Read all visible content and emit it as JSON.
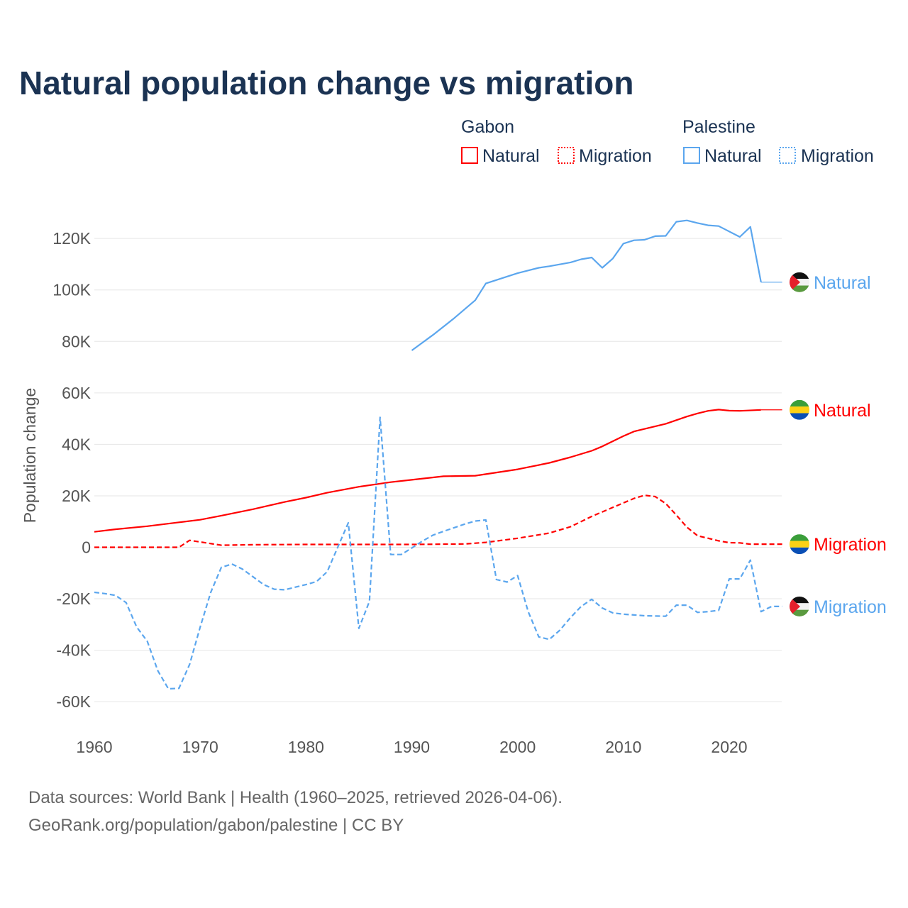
{
  "title": "Natural population change vs migration",
  "footer": {
    "line1": "Data sources: World Bank | Health (1960–2025, retrieved 2026-04-06).",
    "line2": "GeoRank.org/population/gabon/palestine | CC BY"
  },
  "legend": {
    "groups": [
      {
        "name": "Gabon",
        "items": [
          "Natural",
          "Migration"
        ]
      },
      {
        "name": "Palestine",
        "items": [
          "Natural",
          "Migration"
        ]
      }
    ]
  },
  "colors": {
    "gabon": "#ff0000",
    "palestine": "#5ba6ee"
  },
  "chart_data": {
    "type": "line",
    "title": "Natural population change vs migration",
    "xlabel": "",
    "ylabel": "Population change",
    "xlim": [
      1960,
      2025
    ],
    "ylim": [
      -70000,
      130000
    ],
    "xticks": [
      1960,
      1970,
      1980,
      1990,
      2000,
      2010,
      2020
    ],
    "xtick_labels": [
      "1960",
      "1970",
      "1980",
      "1990",
      "2000",
      "2010",
      "2020"
    ],
    "yticks": [
      120000,
      100000,
      80000,
      60000,
      40000,
      20000,
      0,
      -20000,
      -40000,
      -60000
    ],
    "ytick_labels": [
      "120K",
      "100K",
      "80K",
      "60K",
      "40K",
      "20K",
      "0",
      "-20K",
      "-40K",
      "-60K"
    ],
    "grid": true,
    "legend_position": "top-right",
    "series": [
      {
        "name": "Gabon Natural",
        "label": "Natural",
        "country": "gabon",
        "dashed": false,
        "x": [
          1960,
          1962,
          1965,
          1968,
          1970,
          1972,
          1975,
          1978,
          1980,
          1982,
          1985,
          1988,
          1990,
          1993,
          1996,
          2000,
          2003,
          2005,
          2007,
          2008,
          2010,
          2011,
          2014,
          2016,
          2017,
          2018,
          2019,
          2020,
          2021,
          2023
        ],
        "y": [
          6000,
          7000,
          8200,
          9700,
          10700,
          12300,
          14800,
          17600,
          19300,
          21200,
          23500,
          25300,
          26200,
          27600,
          27800,
          30300,
          32800,
          35000,
          37500,
          39200,
          43200,
          45000,
          48000,
          50800,
          52000,
          53000,
          53500,
          53100,
          53000,
          53400
        ],
        "extend_to": 2025
      },
      {
        "name": "Gabon Migration",
        "label": "Migration",
        "country": "gabon",
        "dashed": true,
        "x": [
          1960,
          1968,
          1969,
          1972,
          1975,
          1980,
          1985,
          1990,
          1995,
          1997,
          2000,
          2003,
          2005,
          2007,
          2009,
          2011,
          2012,
          2013,
          2014,
          2015,
          2016,
          2017,
          2019,
          2020,
          2021,
          2022,
          2025
        ],
        "y": [
          0,
          0,
          2700,
          800,
          1000,
          1100,
          1100,
          1100,
          1300,
          1900,
          3500,
          5500,
          8000,
          12000,
          15500,
          19000,
          20200,
          19700,
          17000,
          12500,
          7800,
          4500,
          2500,
          1800,
          1700,
          1200,
          1200
        ]
      },
      {
        "name": "Palestine Natural",
        "label": "Natural",
        "country": "palestine",
        "dashed": false,
        "x": [
          1990,
          1992,
          1994,
          1996,
          1997,
          2000,
          2002,
          2003,
          2005,
          2006,
          2007,
          2008,
          2009,
          2010,
          2011,
          2012,
          2013,
          2014,
          2015,
          2016,
          2017,
          2018,
          2019,
          2021,
          2022,
          2023
        ],
        "y": [
          76500,
          82500,
          89000,
          96000,
          102500,
          106500,
          108600,
          109200,
          110700,
          111900,
          112600,
          108600,
          112200,
          118000,
          119300,
          119500,
          120900,
          121000,
          126500,
          127000,
          126000,
          125100,
          124800,
          120600,
          124500,
          103000
        ],
        "extend_to": 2025
      },
      {
        "name": "Palestine Migration",
        "label": "Migration",
        "country": "palestine",
        "dashed": true,
        "x": [
          1960,
          1961,
          1962,
          1963,
          1964,
          1965,
          1966,
          1967,
          1968,
          1969,
          1970,
          1971,
          1972,
          1973,
          1974,
          1975,
          1976,
          1977,
          1978,
          1979,
          1980,
          1981,
          1982,
          1983,
          1984,
          1985,
          1986,
          1987,
          1988,
          1989,
          1990,
          1991,
          1992,
          1993,
          1994,
          1995,
          1996,
          1997,
          1998,
          1999,
          2000,
          2001,
          2002,
          2003,
          2004,
          2005,
          2006,
          2007,
          2008,
          2009,
          2010,
          2011,
          2012,
          2013,
          2014,
          2015,
          2016,
          2017,
          2018,
          2019,
          2020,
          2021,
          2022,
          2023,
          2024,
          2025
        ],
        "y": [
          -17500,
          -18000,
          -18700,
          -21500,
          -31000,
          -36500,
          -48000,
          -55000,
          -54800,
          -45500,
          -31000,
          -17500,
          -7800,
          -6500,
          -8500,
          -11500,
          -14500,
          -16300,
          -16500,
          -15500,
          -14500,
          -13300,
          -9500,
          0,
          9500,
          -31500,
          -21000,
          50500,
          -2800,
          -2800,
          -300,
          2400,
          4700,
          6200,
          7600,
          9000,
          10200,
          10600,
          -12500,
          -13500,
          -11000,
          -25000,
          -34800,
          -35800,
          -32200,
          -27300,
          -23000,
          -20200,
          -23600,
          -25500,
          -26000,
          -26300,
          -26600,
          -26700,
          -26800,
          -22500,
          -22500,
          -25300,
          -25000,
          -24500,
          -12300,
          -12300,
          -5000,
          -25000,
          -23000,
          -23000
        ]
      }
    ]
  }
}
